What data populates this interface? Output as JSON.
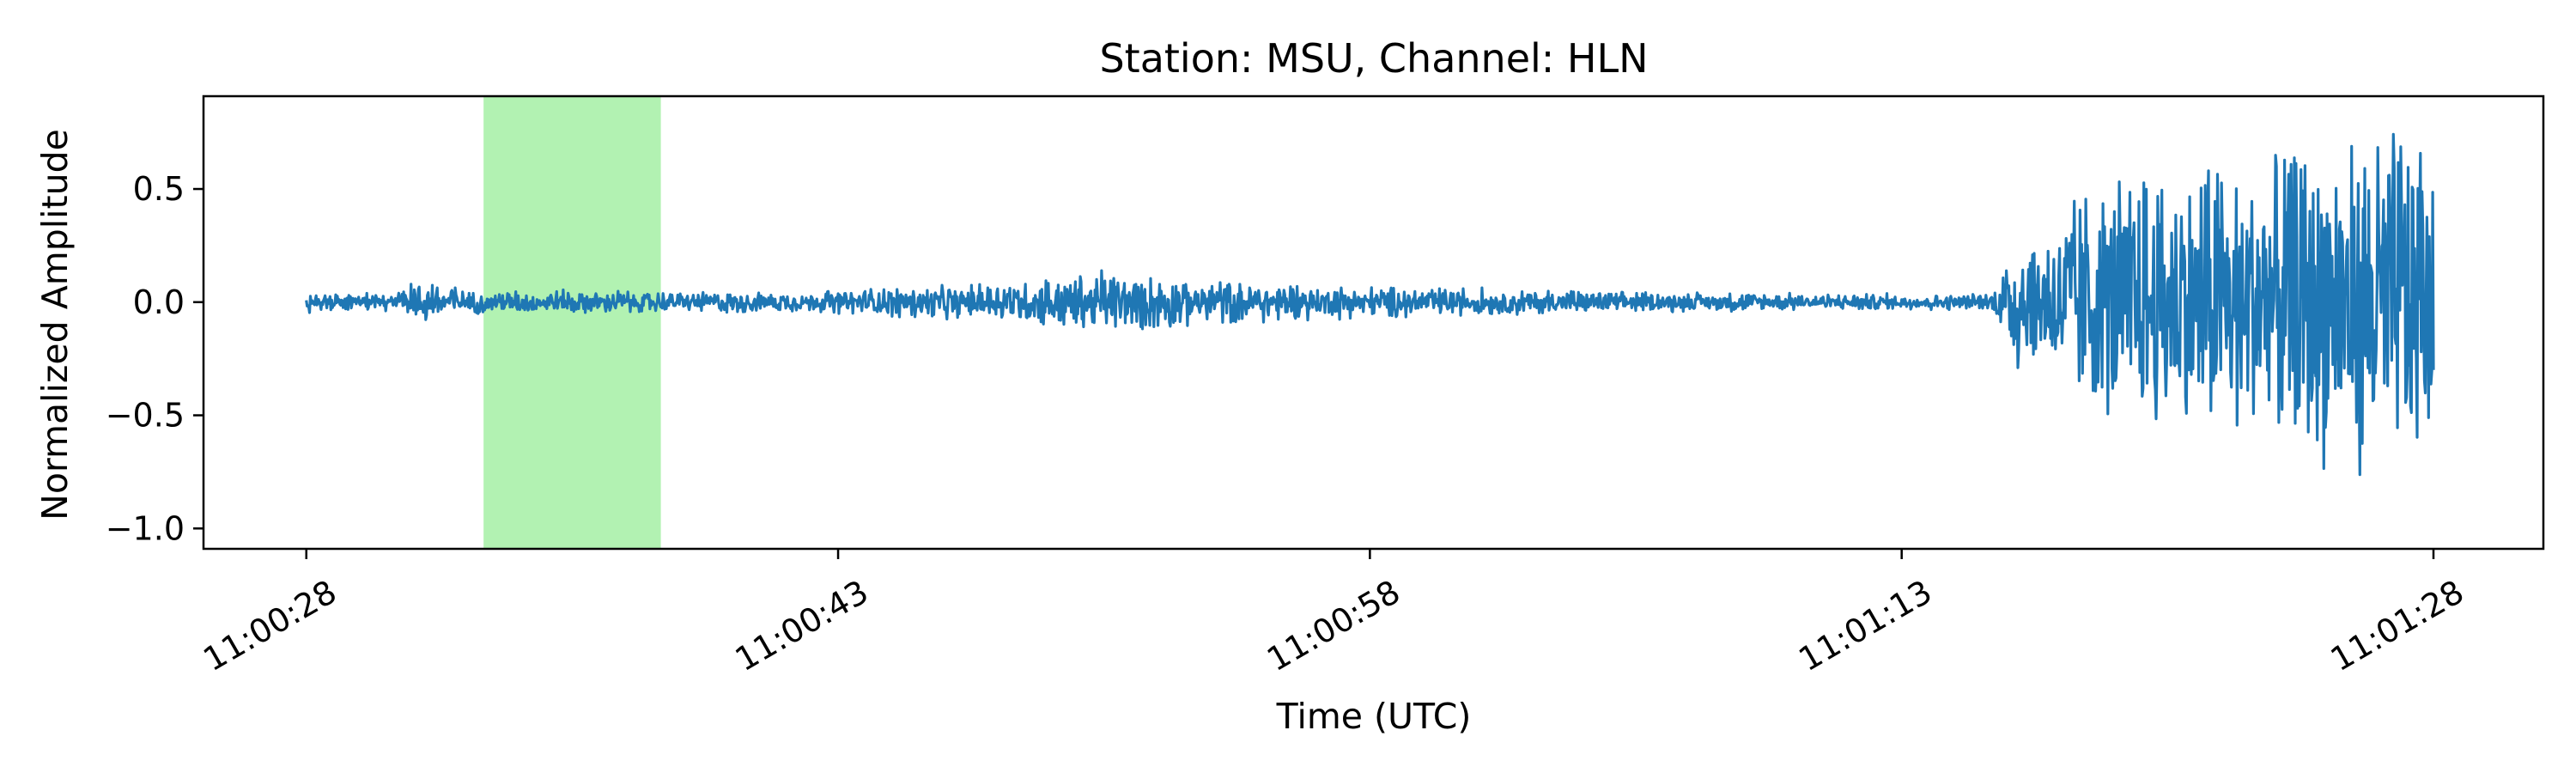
{
  "chart_data": {
    "type": "line",
    "title": "Station: MSU, Channel: HLN",
    "xlabel": "Time (UTC)",
    "ylabel": "Normalized Amplitude",
    "x_ticks": [
      "11:00:28",
      "11:00:43",
      "11:00:58",
      "11:01:13",
      "11:01:28"
    ],
    "x_tick_seconds": [
      0,
      15,
      30,
      45,
      60
    ],
    "xlim_seconds": [
      -2.9,
      63.1
    ],
    "y_ticks": [
      "0.5",
      "0.0",
      "−0.5",
      "−1.0"
    ],
    "y_tick_values": [
      0.5,
      0.0,
      -0.5,
      -1.0
    ],
    "ylim": [
      -1.09,
      0.91
    ],
    "highlight": {
      "start_seconds": 5.0,
      "end_seconds": 10.0,
      "color": "#b2f2b2"
    },
    "series": [
      {
        "color": "#1f77b4",
        "envelope": [
          {
            "t": 0.0,
            "amp": 0.05
          },
          {
            "t": 2.5,
            "amp": 0.04
          },
          {
            "t": 3.0,
            "amp": 0.11
          },
          {
            "t": 3.8,
            "amp": 0.12
          },
          {
            "t": 4.5,
            "amp": 0.06
          },
          {
            "t": 5.0,
            "amp": 0.05
          },
          {
            "t": 7.0,
            "amp": 0.06
          },
          {
            "t": 10.0,
            "amp": 0.05
          },
          {
            "t": 14.0,
            "amp": 0.05
          },
          {
            "t": 19.0,
            "amp": 0.09
          },
          {
            "t": 22.5,
            "amp": 0.16
          },
          {
            "t": 25.0,
            "amp": 0.11
          },
          {
            "t": 29.0,
            "amp": 0.08
          },
          {
            "t": 32.0,
            "amp": 0.07
          },
          {
            "t": 38.0,
            "amp": 0.05
          },
          {
            "t": 43.0,
            "amp": 0.04
          },
          {
            "t": 47.5,
            "amp": 0.04
          },
          {
            "t": 48.2,
            "amp": 0.32
          },
          {
            "t": 49.0,
            "amp": 0.35
          },
          {
            "t": 50.5,
            "amp": 0.55
          },
          {
            "t": 52.0,
            "amp": 0.62
          },
          {
            "t": 55.0,
            "amp": 0.68
          },
          {
            "t": 58.0,
            "amp": 0.78
          },
          {
            "t": 59.5,
            "amp": 0.9
          },
          {
            "t": 60.0,
            "amp": 0.65
          }
        ],
        "y_max": 0.84,
        "y_min": -1.0,
        "end_value": -0.3
      }
    ],
    "grid": false,
    "legend": "none"
  }
}
